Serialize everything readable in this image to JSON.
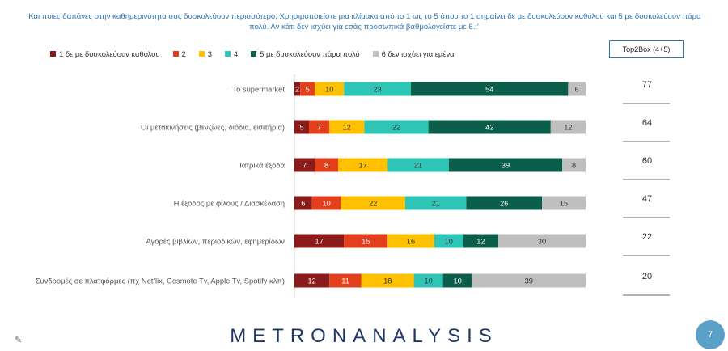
{
  "question": "'Και ποιες δαπάνες στην καθημερινότητα σας δυσκολεύουν περισσότερο; Χρησιμοποιείστε μια κλίμακα από το 1 ως το 5 όπου το 1 σημαίνει δε με δυσκολεύουν καθόλου και 5 με δυσκολεύουν πάρα πολύ. Αν κάτι δεν ισχύει για εσάς προσωπικά βαθμολογείστε με 6.;'",
  "top2box_header": "Top2Box (4+5)",
  "logo": "METRONANALYSIS",
  "corner_icon": "✎",
  "page_number": "7",
  "chart_data": {
    "type": "bar",
    "orientation": "horizontal",
    "stacked": true,
    "categories": [
      "Το supermarket",
      "Οι μετακινήσεις (βενζίνες, διόδια, εισιτήρια)",
      "Ιατρικά έξοδα",
      "Η έξοδος με φίλους / Διασκέδαση",
      "Αγορές βιβλίων, περιοδικών, εφημερίδων",
      "Συνδρομές σε πλατφόρμες (πχ Netflix, Cosmote Tv, Apple Tv, Spotify κλπ)"
    ],
    "series": [
      {
        "name": "1 δε με δυσκολεύουν καθόλου",
        "color": "#8b1a1a",
        "label_color": "#ffffff",
        "values": [
          2,
          5,
          7,
          6,
          17,
          12
        ]
      },
      {
        "name": "2",
        "color": "#e2401c",
        "label_color": "#ffffff",
        "values": [
          5,
          7,
          8,
          10,
          15,
          11
        ]
      },
      {
        "name": "3",
        "color": "#ffc000",
        "label_color": "#333333",
        "values": [
          10,
          12,
          17,
          22,
          16,
          18
        ]
      },
      {
        "name": "4",
        "color": "#2ec4b6",
        "label_color": "#333333",
        "values": [
          23,
          22,
          21,
          21,
          10,
          10
        ]
      },
      {
        "name": "5 με δυσκολεύουν πάρα πολύ",
        "color": "#0b5e4a",
        "label_color": "#ffffff",
        "values": [
          54,
          42,
          39,
          26,
          12,
          10
        ]
      },
      {
        "name": "6 δεν ισχύει για εμένα",
        "color": "#bfbfbf",
        "label_color": "#333333",
        "values": [
          6,
          12,
          8,
          15,
          30,
          39
        ]
      }
    ],
    "top2box": [
      77,
      64,
      60,
      47,
      22,
      20
    ],
    "xlim": [
      0,
      100
    ],
    "legend_position": "top"
  }
}
